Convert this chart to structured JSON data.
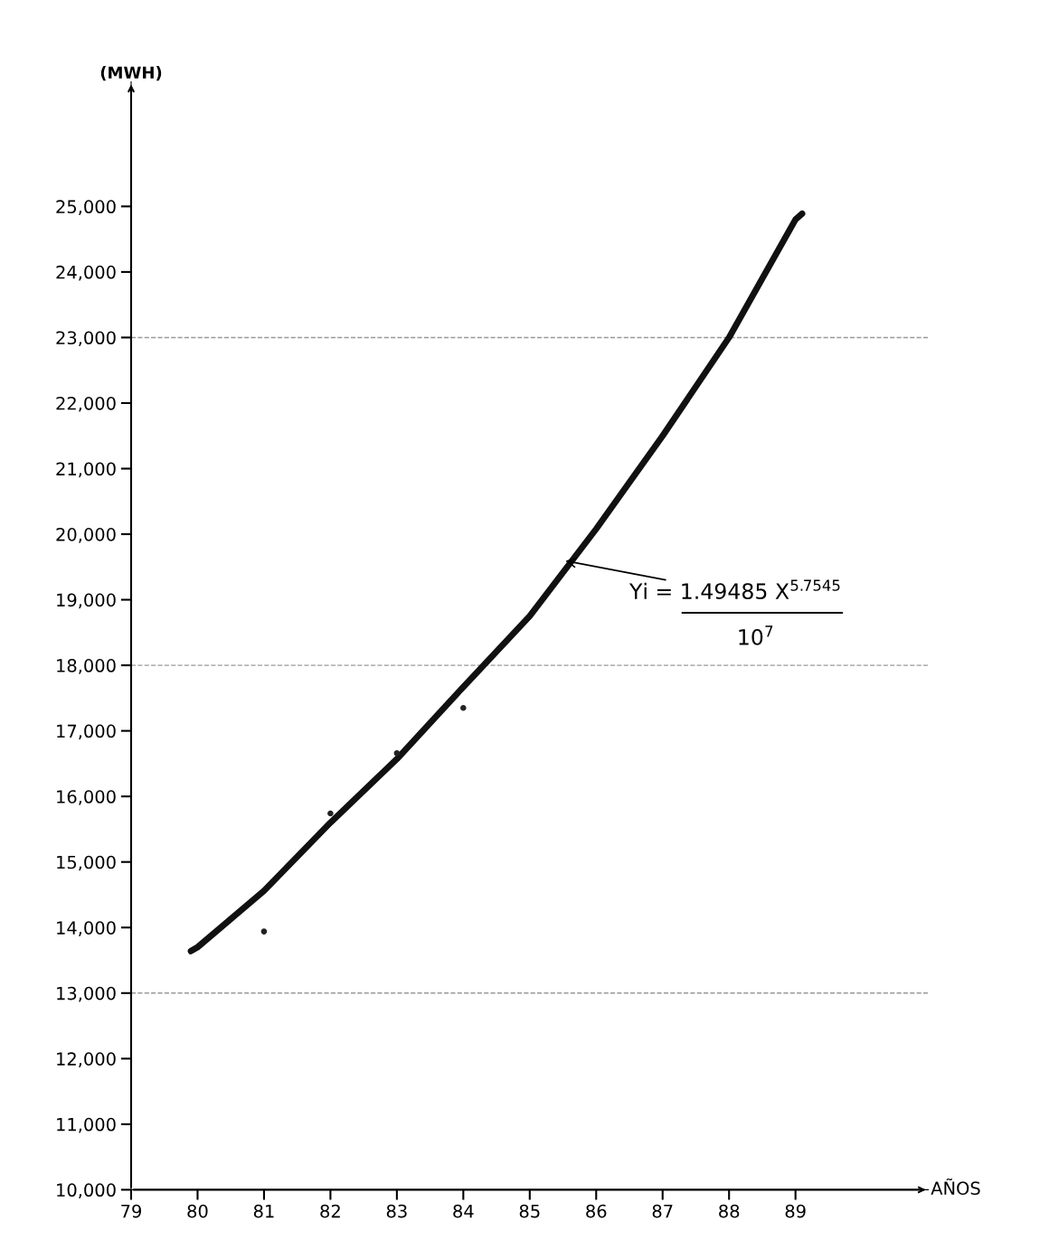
{
  "chart_data": {
    "type": "line",
    "ylabel": "(MWH)",
    "xlabel": "AÑOS",
    "xlim": [
      79,
      91
    ],
    "ylim": [
      10000,
      26900
    ],
    "xticks": [
      79,
      80,
      81,
      82,
      83,
      84,
      85,
      86,
      87,
      88,
      89
    ],
    "yticks": [
      {
        "value": 10000,
        "label": "10,000"
      },
      {
        "value": 11000,
        "label": "11,000"
      },
      {
        "value": 12000,
        "label": "12,000"
      },
      {
        "value": 13000,
        "label": "13,000"
      },
      {
        "value": 14000,
        "label": "14,000"
      },
      {
        "value": 15000,
        "label": "15,000"
      },
      {
        "value": 16000,
        "label": "16,000"
      },
      {
        "value": 17000,
        "label": "17,000"
      },
      {
        "value": 18000,
        "label": "18,000"
      },
      {
        "value": 19000,
        "label": "19,000"
      },
      {
        "value": 20000,
        "label": "20,000"
      },
      {
        "value": 21000,
        "label": "21,000"
      },
      {
        "value": 22000,
        "label": "22,000"
      },
      {
        "value": 23000,
        "label": "23,000"
      },
      {
        "value": 24000,
        "label": "24,000"
      },
      {
        "value": 25000,
        "label": "25,000"
      }
    ],
    "series": [
      {
        "color": "#111111",
        "x": [
          79.9,
          80,
          81,
          82,
          83,
          84,
          85,
          86,
          87,
          88,
          89,
          89.1
        ],
        "values": [
          13640,
          13700,
          14560,
          15600,
          16570,
          17670,
          18750,
          20080,
          21500,
          23000,
          24800,
          24890
        ]
      },
      {
        "type": "scatter",
        "color": "#222222",
        "x": [
          81,
          82,
          83,
          84
        ],
        "values": [
          13940,
          15740,
          16660,
          17350
        ]
      }
    ],
    "ref_lines": [
      {
        "axis": "y",
        "value": 13000,
        "color": "#999999",
        "line_style": "dashed"
      },
      {
        "axis": "y",
        "value": 18000,
        "color": "#999999",
        "line_style": "dashed"
      },
      {
        "axis": "y",
        "value": 23000,
        "color": "#999999",
        "line_style": "dashed"
      }
    ],
    "annotations": [
      {
        "text": "Yi = 1.49485 X$^{5.7545}$",
        "x": 85.5,
        "y": 19600
      },
      "10$^{7}$"
    ],
    "grid": false
  }
}
